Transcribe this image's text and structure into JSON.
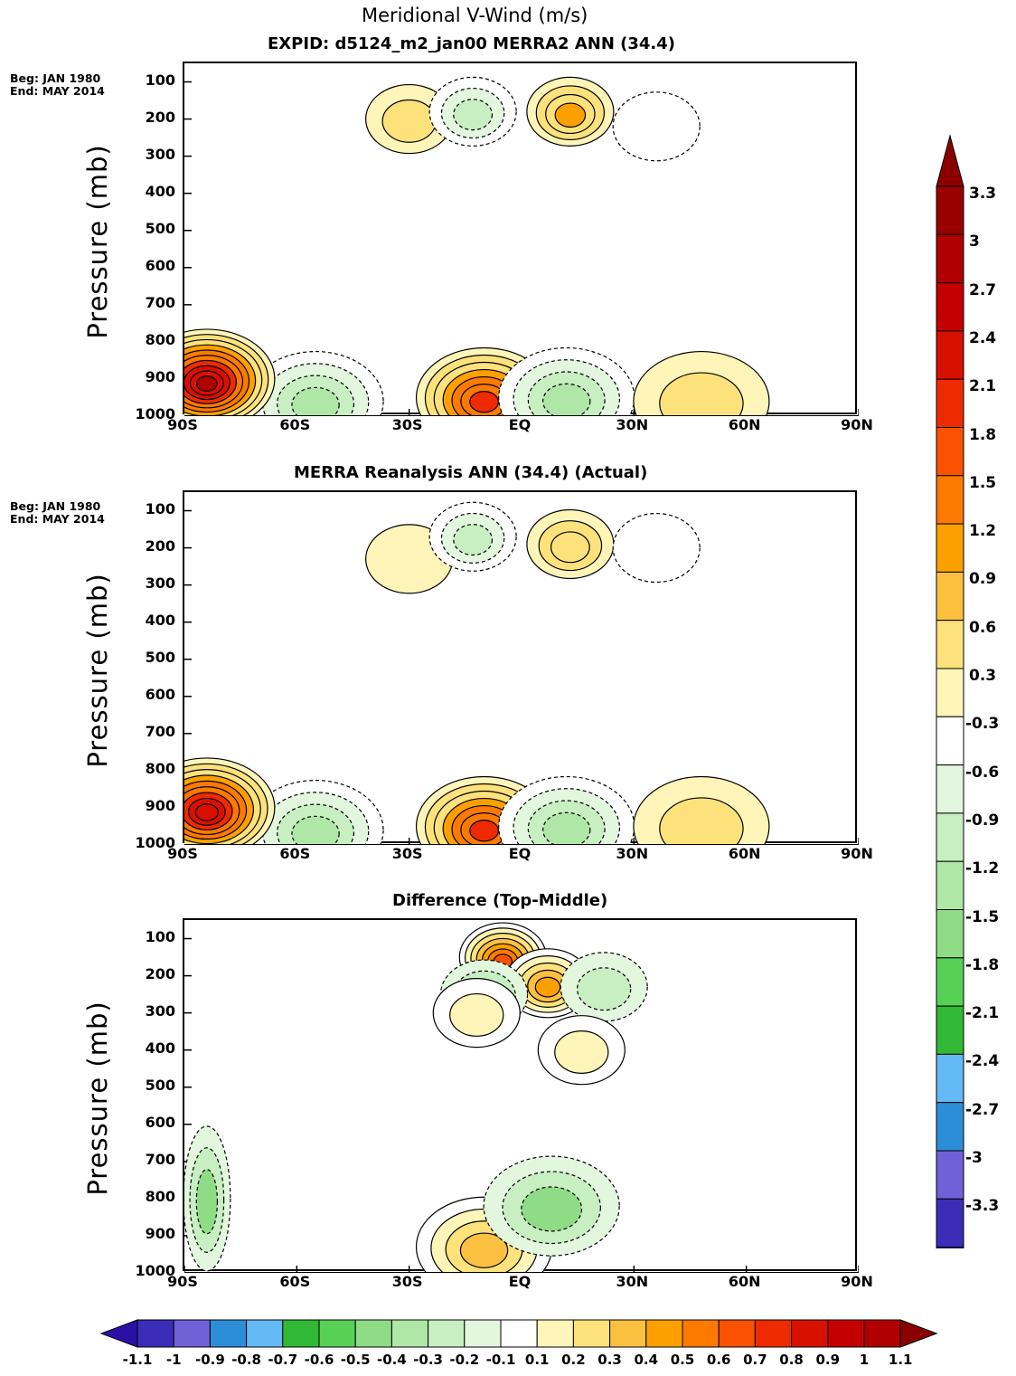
{
  "figure": {
    "title": "Meridional V-Wind (m/s)"
  },
  "chart_data": [
    {
      "type": "heatmap",
      "title": "EXPID: d5124_m2_jan00   MERRA2 ANN (34.4)",
      "side_label": [
        "Beg: JAN 1980",
        "End: MAY 2014"
      ],
      "ylabel": "Pressure (mb)",
      "xlabel": "",
      "x_ticks": [
        "90S",
        "60S",
        "30S",
        "EQ",
        "30N",
        "60N",
        "90N"
      ],
      "y_ticks": [
        "100",
        "200",
        "300",
        "400",
        "500",
        "600",
        "700",
        "800",
        "900",
        "1000"
      ],
      "xlim": [
        -90,
        90
      ],
      "ylim": [
        1000,
        50
      ],
      "features": [
        {
          "lat": -30,
          "p": 200,
          "value": 0.5,
          "sign": "positive"
        },
        {
          "lat": -13,
          "p": 180,
          "value": -1.0,
          "sign": "negative"
        },
        {
          "lat": 13,
          "p": 180,
          "value": 1.1,
          "sign": "positive"
        },
        {
          "lat": 36,
          "p": 220,
          "value": -0.4,
          "sign": "negative"
        },
        {
          "lat": -10,
          "p": 950,
          "value": 2.0,
          "sign": "positive"
        },
        {
          "lat": 12,
          "p": 950,
          "value": -1.2,
          "sign": "negative"
        },
        {
          "lat": -55,
          "p": 960,
          "value": -1.2,
          "sign": "negative"
        },
        {
          "lat": -84,
          "p": 900,
          "value": 3.0,
          "sign": "positive"
        },
        {
          "lat": 48,
          "p": 960,
          "value": 0.6,
          "sign": "positive"
        }
      ]
    },
    {
      "type": "heatmap",
      "title": "MERRA      Reanalysis ANN (34.4) (Actual)",
      "side_label": [
        "Beg: JAN 1980",
        "End: MAY 2014"
      ],
      "ylabel": "Pressure (mb)",
      "xlabel": "",
      "x_ticks": [
        "90S",
        "60S",
        "30S",
        "EQ",
        "30N",
        "60N",
        "90N"
      ],
      "y_ticks": [
        "100",
        "200",
        "300",
        "400",
        "500",
        "600",
        "700",
        "800",
        "900",
        "1000"
      ],
      "xlim": [
        -90,
        90
      ],
      "ylim": [
        1000,
        50
      ],
      "features": [
        {
          "lat": -30,
          "p": 230,
          "value": 0.4,
          "sign": "positive"
        },
        {
          "lat": -13,
          "p": 170,
          "value": -0.9,
          "sign": "negative"
        },
        {
          "lat": 13,
          "p": 190,
          "value": 1.0,
          "sign": "positive"
        },
        {
          "lat": 36,
          "p": 200,
          "value": -0.4,
          "sign": "negative"
        },
        {
          "lat": -10,
          "p": 950,
          "value": 2.1,
          "sign": "positive"
        },
        {
          "lat": 12,
          "p": 950,
          "value": -1.1,
          "sign": "negative"
        },
        {
          "lat": -55,
          "p": 960,
          "value": -1.1,
          "sign": "negative"
        },
        {
          "lat": -84,
          "p": 900,
          "value": 2.7,
          "sign": "positive"
        },
        {
          "lat": 48,
          "p": 950,
          "value": 0.6,
          "sign": "positive"
        }
      ]
    },
    {
      "type": "heatmap",
      "title": "Difference (Top-Middle)",
      "ylabel": "Pressure (mb)",
      "xlabel": "",
      "x_ticks": [
        "90S",
        "60S",
        "30S",
        "EQ",
        "30N",
        "60N",
        "90N"
      ],
      "y_ticks": [
        "100",
        "200",
        "300",
        "400",
        "500",
        "600",
        "700",
        "800",
        "900",
        "1000"
      ],
      "xlim": [
        -90,
        90
      ],
      "ylim": [
        1000,
        50
      ],
      "features": [
        {
          "lat": -5,
          "p": 150,
          "value": 0.7,
          "sign": "positive"
        },
        {
          "lat": 7,
          "p": 220,
          "value": 0.5,
          "sign": "positive"
        },
        {
          "lat": -10,
          "p": 250,
          "value": -0.3,
          "sign": "negative"
        },
        {
          "lat": -12,
          "p": 300,
          "value": 0.2,
          "sign": "positive"
        },
        {
          "lat": 22,
          "p": 230,
          "value": -0.2,
          "sign": "negative"
        },
        {
          "lat": 16,
          "p": 400,
          "value": 0.2,
          "sign": "positive"
        },
        {
          "lat": -10,
          "p": 930,
          "value": 0.4,
          "sign": "positive"
        },
        {
          "lat": 8,
          "p": 820,
          "value": -0.3,
          "sign": "negative"
        },
        {
          "lat": -84,
          "p": 800,
          "value": -0.3,
          "sign": "negative"
        }
      ]
    }
  ],
  "colorbars": {
    "vertical": {
      "labels": [
        "3.3",
        "3",
        "2.7",
        "2.4",
        "2.1",
        "1.8",
        "1.5",
        "1.2",
        "0.9",
        "0.6",
        "0.3",
        "-0.3",
        "-0.6",
        "-0.9",
        "-1.2",
        "-1.5",
        "-1.8",
        "-2.1",
        "-2.4",
        "-2.7",
        "-3",
        "-3.3"
      ],
      "colors": [
        "#9a0000",
        "#b00000",
        "#c40000",
        "#d81000",
        "#ee2b00",
        "#fa5200",
        "#fc7a00",
        "#fca000",
        "#fcc040",
        "#fde27c",
        "#fff5b8",
        "#ffffff",
        "#e2f7de",
        "#c8efc2",
        "#aee7a6",
        "#8fdc86",
        "#56d156",
        "#31b836",
        "#64baf5",
        "#2d8ed8",
        "#7160d8",
        "#3c2db8",
        "#2a10a6"
      ],
      "end_high": "#8a0000",
      "end_low": "#2a10a6"
    },
    "horizontal": {
      "labels": [
        "-1.1",
        "-1",
        "-0.9",
        "-0.8",
        "-0.7",
        "-0.6",
        "-0.5",
        "-0.4",
        "-0.3",
        "-0.2",
        "-0.1",
        "0.1",
        "0.2",
        "0.3",
        "0.4",
        "0.5",
        "0.6",
        "0.7",
        "0.8",
        "0.9",
        "1",
        "1.1"
      ],
      "colors": [
        "#3c2db8",
        "#7160d8",
        "#2d8ed8",
        "#64baf5",
        "#31b836",
        "#56d156",
        "#8fdc86",
        "#aee7a6",
        "#c8efc2",
        "#e2f7de",
        "#ffffff",
        "#fff5b8",
        "#fde27c",
        "#fcc040",
        "#fca000",
        "#fc7a00",
        "#fa5200",
        "#ee2b00",
        "#d81000",
        "#c40000",
        "#b00000"
      ],
      "end_low": "#2a10a6",
      "end_high": "#8a0000"
    }
  }
}
